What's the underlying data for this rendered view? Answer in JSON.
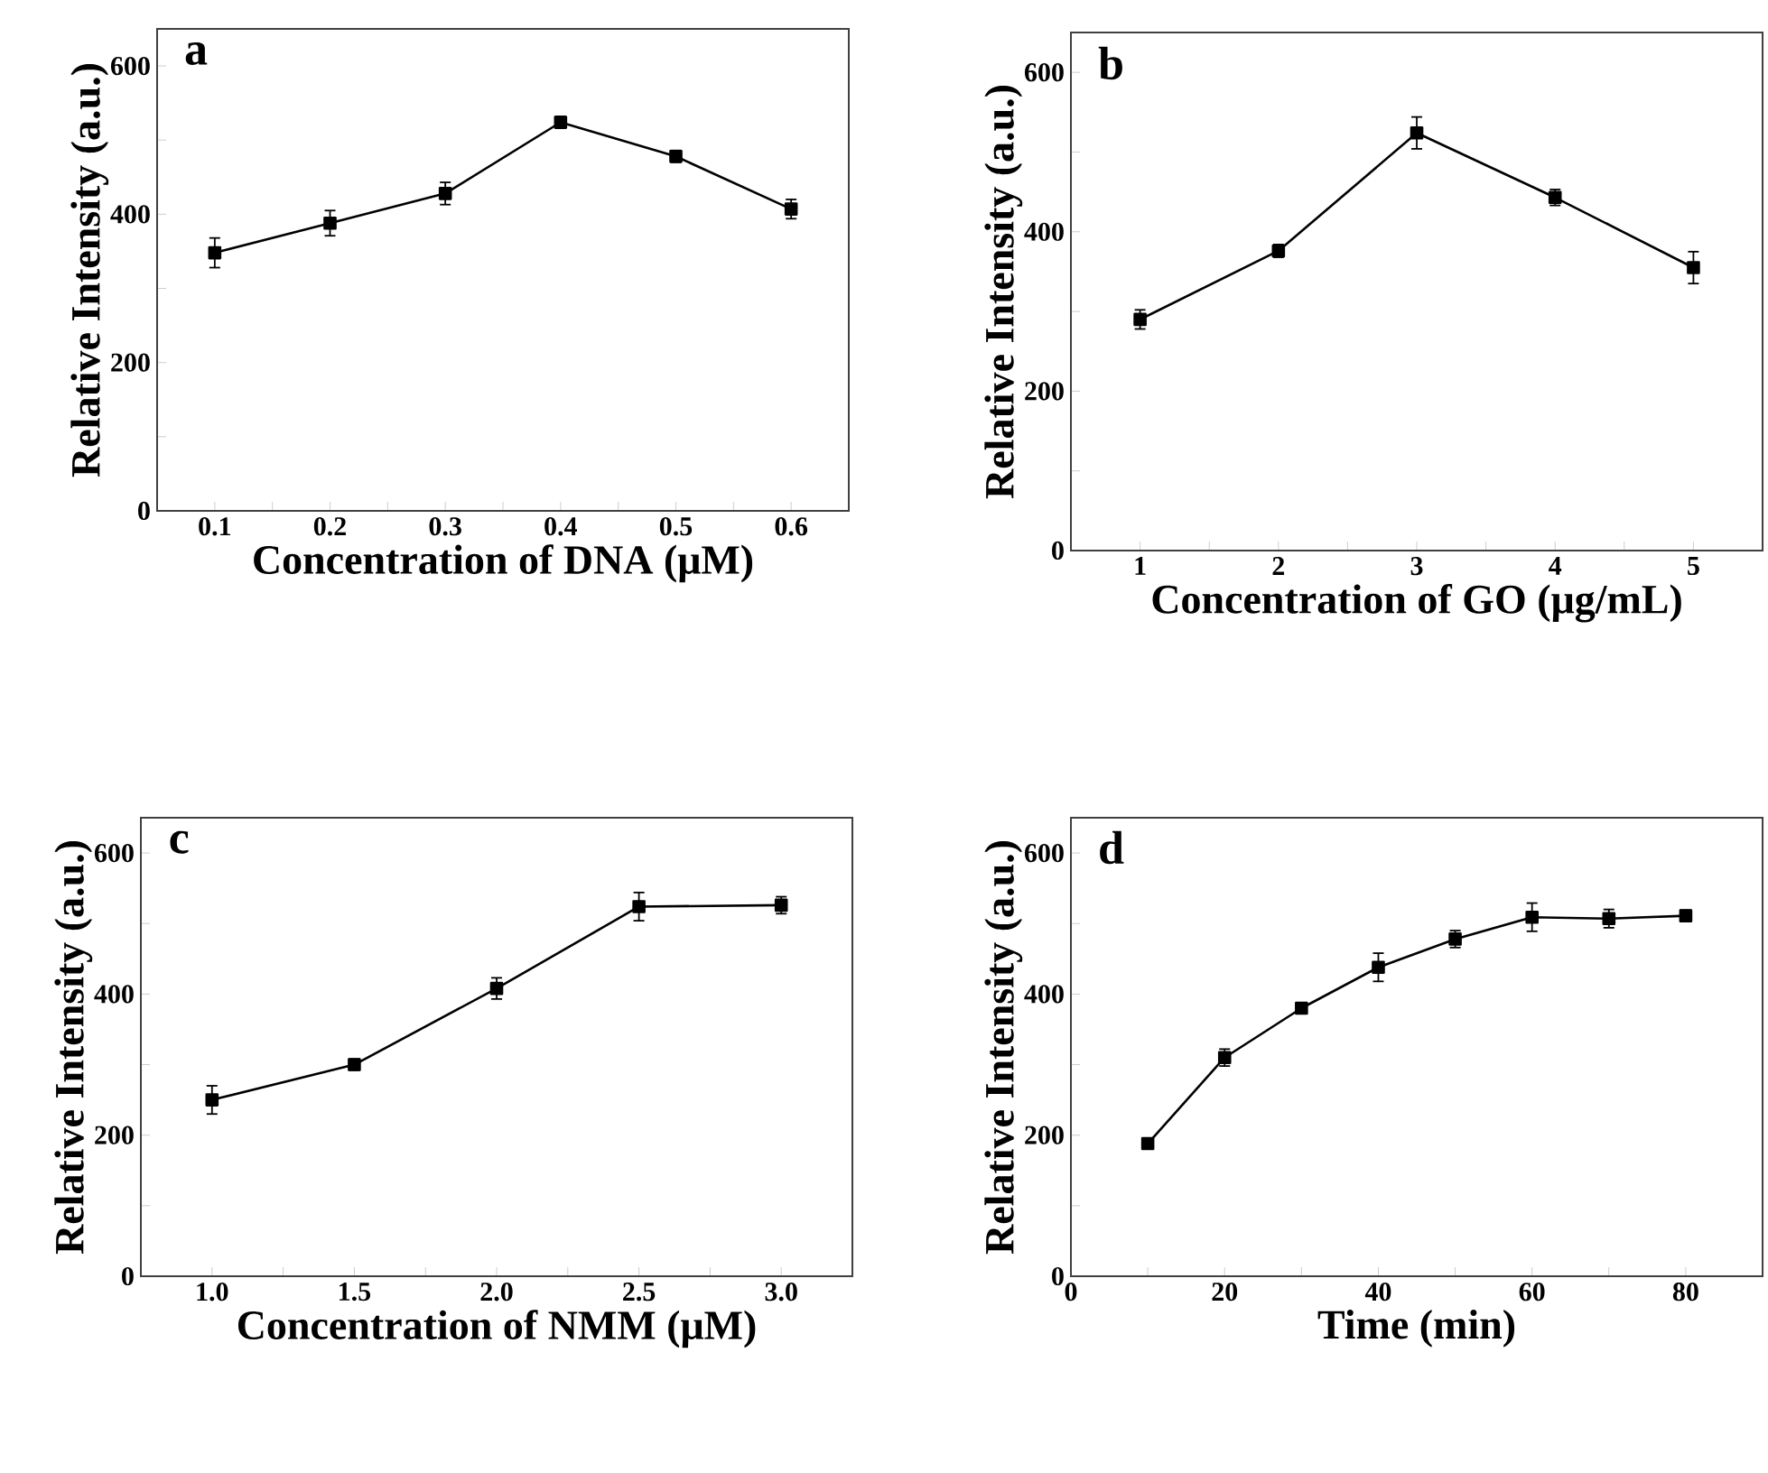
{
  "chart_data": [
    {
      "type": "line",
      "x": [
        0.1,
        0.2,
        0.3,
        0.4,
        0.5,
        0.6
      ],
      "values": [
        348,
        388,
        428,
        524,
        478,
        407
      ],
      "errors": [
        20,
        17,
        15,
        8,
        8,
        13
      ],
      "color": "#000000",
      "marker": "square",
      "line_style": "solid",
      "xlim": [
        0.05,
        0.65
      ],
      "ylim": [
        0,
        650
      ],
      "xticks": [
        0.1,
        0.2,
        0.3,
        0.4,
        0.5,
        0.6,
        {
          "value": 0.15,
          "label": null
        },
        {
          "value": 0.25,
          "label": null
        },
        {
          "value": 0.35,
          "label": null
        },
        {
          "value": 0.45,
          "label": null
        },
        {
          "value": 0.55,
          "label": null
        }
      ],
      "yticks": [
        0,
        200,
        400,
        600,
        {
          "value": 100,
          "label": null
        },
        {
          "value": 300,
          "label": null
        },
        {
          "value": 500,
          "label": null
        }
      ],
      "xlabel": "Concentration of DNA (μM)",
      "ylabel": "Relative Intensity (a.u.)",
      "annotations": [
        "a"
      ]
    },
    {
      "type": "line",
      "x": [
        1,
        2,
        3,
        4,
        5
      ],
      "values": [
        290,
        376,
        524,
        443,
        355
      ],
      "errors": [
        12,
        8,
        20,
        10,
        20
      ],
      "color": "#000000",
      "marker": "square",
      "line_style": "solid",
      "xlim": [
        0.5,
        5.5
      ],
      "ylim": [
        0,
        650
      ],
      "xticks": [
        1,
        2,
        3,
        4,
        5,
        {
          "value": 1.5,
          "label": null
        },
        {
          "value": 2.5,
          "label": null
        },
        {
          "value": 3.5,
          "label": null
        },
        {
          "value": 4.5,
          "label": null
        }
      ],
      "yticks": [
        0,
        200,
        400,
        600,
        {
          "value": 100,
          "label": null
        },
        {
          "value": 300,
          "label": null
        },
        {
          "value": 500,
          "label": null
        }
      ],
      "xlabel": "Concentration of GO (μg/mL)",
      "ylabel": "Relative Intensity (a.u.)",
      "annotations": [
        "b"
      ]
    },
    {
      "type": "line",
      "x": [
        1.0,
        1.5,
        2.0,
        2.5,
        3.0
      ],
      "values": [
        250,
        300,
        408,
        524,
        526
      ],
      "errors": [
        20,
        8,
        15,
        20,
        12
      ],
      "color": "#000000",
      "marker": "square",
      "line_style": "solid",
      "xlim": [
        0.75,
        3.25
      ],
      "ylim": [
        0,
        650
      ],
      "xticks": [
        {
          "value": 1,
          "label": "1.0"
        },
        {
          "value": 1.5,
          "label": "1.5"
        },
        {
          "value": 2,
          "label": "2.0"
        },
        {
          "value": 2.5,
          "label": "2.5"
        },
        {
          "value": 3,
          "label": "3.0"
        },
        {
          "value": 1.25,
          "label": null
        },
        {
          "value": 1.75,
          "label": null
        },
        {
          "value": 2.25,
          "label": null
        },
        {
          "value": 2.75,
          "label": null
        }
      ],
      "yticks": [
        0,
        200,
        400,
        600,
        {
          "value": 100,
          "label": null
        },
        {
          "value": 300,
          "label": null
        },
        {
          "value": 500,
          "label": null
        }
      ],
      "xlabel": "Concentration of NMM (μM)",
      "ylabel": "Relative Intensity (a.u.)",
      "annotations": [
        "c"
      ]
    },
    {
      "type": "line",
      "x": [
        10,
        20,
        30,
        40,
        50,
        60,
        70,
        80
      ],
      "values": [
        188,
        310,
        380,
        438,
        478,
        509,
        507,
        511
      ],
      "errors": [
        3,
        12,
        6,
        20,
        12,
        20,
        13,
        8
      ],
      "color": "#000000",
      "marker": "square",
      "line_style": "solid",
      "xlim": [
        0,
        90
      ],
      "ylim": [
        0,
        650
      ],
      "xticks": [
        0,
        20,
        40,
        60,
        80,
        {
          "value": 10,
          "label": null
        },
        {
          "value": 30,
          "label": null
        },
        {
          "value": 50,
          "label": null
        },
        {
          "value": 70,
          "label": null
        }
      ],
      "yticks": [
        0,
        200,
        400,
        600,
        {
          "value": 100,
          "label": null
        },
        {
          "value": 300,
          "label": null
        },
        {
          "value": 500,
          "label": null
        }
      ],
      "xlabel": "Time (min)",
      "ylabel": "Relative Intensity (a.u.)",
      "annotations": [
        "d"
      ]
    }
  ]
}
